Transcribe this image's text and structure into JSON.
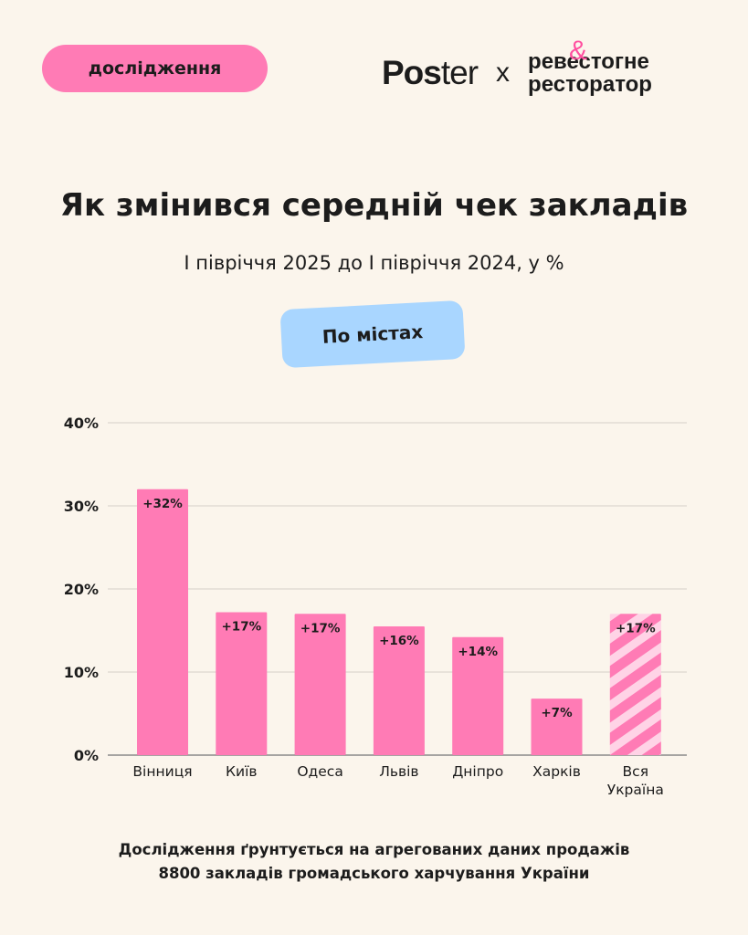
{
  "tag": "дослідження",
  "logos": {
    "brand_bold": "Pos",
    "brand_light": "ter",
    "separator": "x",
    "partner_line1": "ревестогне",
    "partner_line2": "ресторатор",
    "partner_symbol": "&"
  },
  "title": "Як змінився середній чек закладів",
  "subtitle": "І півріччя 2025 до І півріччя 2024, у %",
  "filter_label": "По містах",
  "footnote": {
    "line1": "Дослідження ґрунтується на агрегованих даних продажів",
    "line2": "8800 закладів громадського харчування України"
  },
  "colors": {
    "background": "#fbf5ec",
    "bar": "#ff7bb5",
    "stripe_light": "#ffd3e6",
    "pill": "#a9d6ff",
    "tag": "#ff7bb5"
  },
  "chart_data": {
    "type": "bar",
    "categories": [
      "Вінниця",
      "Київ",
      "Одеса",
      "Львів",
      "Дніпро",
      "Харків",
      "Вся Україна"
    ],
    "values": [
      32,
      17.2,
      17,
      15.5,
      14.2,
      6.8,
      17
    ],
    "labels": [
      "+32%",
      "+17%",
      "+17%",
      "+16%",
      "+14%",
      "+7%",
      "+17%"
    ],
    "ylim": [
      0,
      40
    ],
    "yticks": [
      "0%",
      "10%",
      "20%",
      "30%",
      "40%"
    ],
    "grid": true,
    "highlight_last": "striped"
  }
}
